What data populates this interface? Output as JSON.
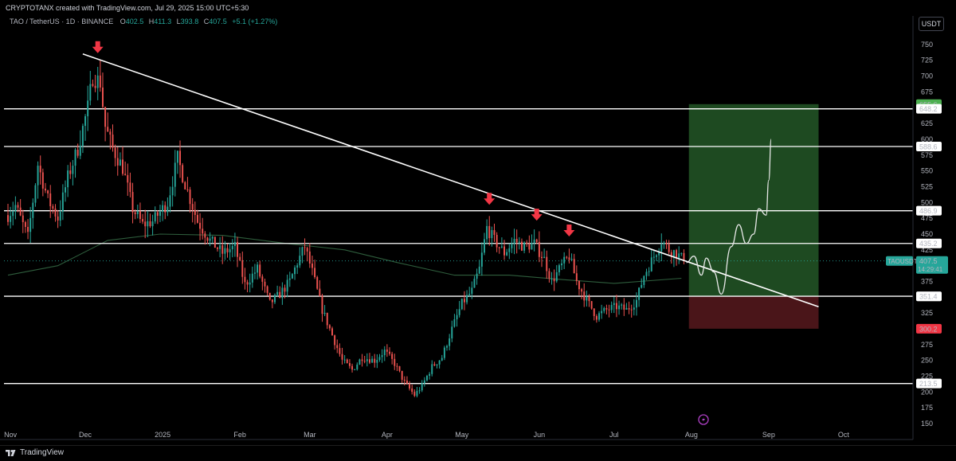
{
  "header": {
    "attribution": "CRYPTOTANX created with TradingView.com, Jul 29, 2025 15:00 UTC+5:30"
  },
  "legend": {
    "symbol": "TAO / TetherUS · 1D · BINANCE",
    "o_label": "O",
    "o_value": "402.5",
    "h_label": "H",
    "h_value": "411.3",
    "l_label": "L",
    "l_value": "393.8",
    "c_label": "C",
    "c_value": "407.5",
    "change": "+5.1 (+1.27%)"
  },
  "currency_button": "USDT",
  "footer": {
    "brand": "TradingView"
  },
  "colors": {
    "up": "#26a69a",
    "down": "#ef5350",
    "ma": "#2e5d3c",
    "level_line": "#ffffff",
    "target_zone": "#1e4a21",
    "stop_zone": "#4a1519",
    "arrow": "#f23645"
  },
  "chart_data": {
    "type": "candlestick",
    "symbol": "TAOUSDT",
    "timeframe": "1D",
    "y_axis": {
      "range": [
        140,
        770
      ],
      "ticks": [
        150,
        175,
        200,
        225,
        250,
        275,
        300,
        325,
        350,
        375,
        400,
        425,
        450,
        475,
        500,
        525,
        550,
        575,
        600,
        625,
        650,
        675,
        700,
        725,
        750
      ]
    },
    "x_axis": {
      "labels": [
        "Nov",
        "Dec",
        "2025",
        "Feb",
        "Mar",
        "Apr",
        "May",
        "Jun",
        "Jul",
        "Aug",
        "Sep",
        "Oct"
      ],
      "start": "2024-10-31",
      "end": "2025-10-10"
    },
    "horizontal_levels": [
      648.2,
      588.6,
      486.9,
      435.2,
      351.6,
      213.5
    ],
    "price_labels": [
      {
        "value": 655.6,
        "text": "655.6",
        "kind": "target"
      },
      {
        "value": 648.2,
        "text": "648.2",
        "kind": "level"
      },
      {
        "value": 588.6,
        "text": "588.6",
        "kind": "level"
      },
      {
        "value": 486.9,
        "text": "486.9",
        "kind": "level"
      },
      {
        "value": 435.2,
        "text": "435.2",
        "kind": "level"
      },
      {
        "value": 351.6,
        "text": "351.6",
        "kind": "entry"
      },
      {
        "value": 351.4,
        "text": "351.4",
        "kind": "level"
      },
      {
        "value": 300.2,
        "text": "300.2",
        "kind": "stop"
      },
      {
        "value": 213.5,
        "text": "213.5",
        "kind": "level"
      }
    ],
    "last_price": {
      "value": 407.5,
      "symbol_label": "TAOUSDT",
      "price_label": "407.5",
      "countdown": "14:29:41"
    },
    "trendline": {
      "start": {
        "date": "2024-11-30",
        "price": 735
      },
      "end": {
        "date": "2025-09-21",
        "price": 335
      }
    },
    "position": {
      "start": "2025-07-31",
      "end": "2025-09-21",
      "entry": 351.6,
      "target": 655.6,
      "stop": 300.2
    },
    "projection": [
      {
        "date": "2025-07-30",
        "price": 405
      },
      {
        "date": "2025-08-02",
        "price": 415
      },
      {
        "date": "2025-08-05",
        "price": 385
      },
      {
        "date": "2025-08-07",
        "price": 412
      },
      {
        "date": "2025-08-10",
        "price": 390
      },
      {
        "date": "2025-08-13",
        "price": 355
      },
      {
        "date": "2025-08-17",
        "price": 430
      },
      {
        "date": "2025-08-20",
        "price": 465
      },
      {
        "date": "2025-08-23",
        "price": 435
      },
      {
        "date": "2025-08-26",
        "price": 450
      },
      {
        "date": "2025-08-28",
        "price": 490
      },
      {
        "date": "2025-08-31",
        "price": 480
      },
      {
        "date": "2025-09-01",
        "price": 535
      },
      {
        "date": "2025-09-02",
        "price": 600
      }
    ],
    "arrows": [
      {
        "date": "2024-12-06",
        "price": 740
      },
      {
        "date": "2025-05-12",
        "price": 500
      },
      {
        "date": "2025-05-31",
        "price": 475
      },
      {
        "date": "2025-06-13",
        "price": 450
      }
    ],
    "price_path": [
      {
        "date": "2024-10-31",
        "price": 480
      },
      {
        "date": "2024-11-03",
        "price": 495
      },
      {
        "date": "2024-11-08",
        "price": 445
      },
      {
        "date": "2024-11-12",
        "price": 560
      },
      {
        "date": "2024-11-16",
        "price": 505
      },
      {
        "date": "2024-11-20",
        "price": 475
      },
      {
        "date": "2024-11-24",
        "price": 540
      },
      {
        "date": "2024-11-28",
        "price": 585
      },
      {
        "date": "2024-12-02",
        "price": 650
      },
      {
        "date": "2024-12-04",
        "price": 700
      },
      {
        "date": "2024-12-07",
        "price": 690
      },
      {
        "date": "2024-12-09",
        "price": 620
      },
      {
        "date": "2024-12-12",
        "price": 585
      },
      {
        "date": "2024-12-16",
        "price": 555
      },
      {
        "date": "2024-12-20",
        "price": 490
      },
      {
        "date": "2024-12-24",
        "price": 465
      },
      {
        "date": "2024-12-28",
        "price": 470
      },
      {
        "date": "2025-01-03",
        "price": 500
      },
      {
        "date": "2025-01-07",
        "price": 570
      },
      {
        "date": "2025-01-10",
        "price": 530
      },
      {
        "date": "2025-01-15",
        "price": 470
      },
      {
        "date": "2025-01-20",
        "price": 440
      },
      {
        "date": "2025-01-25",
        "price": 420
      },
      {
        "date": "2025-01-30",
        "price": 430
      },
      {
        "date": "2025-02-03",
        "price": 370
      },
      {
        "date": "2025-02-08",
        "price": 395
      },
      {
        "date": "2025-02-13",
        "price": 340
      },
      {
        "date": "2025-02-17",
        "price": 355
      },
      {
        "date": "2025-02-21",
        "price": 375
      },
      {
        "date": "2025-02-24",
        "price": 405
      },
      {
        "date": "2025-02-27",
        "price": 430
      },
      {
        "date": "2025-03-02",
        "price": 390
      },
      {
        "date": "2025-03-06",
        "price": 330
      },
      {
        "date": "2025-03-10",
        "price": 290
      },
      {
        "date": "2025-03-14",
        "price": 250
      },
      {
        "date": "2025-03-18",
        "price": 235
      },
      {
        "date": "2025-03-22",
        "price": 255
      },
      {
        "date": "2025-03-27",
        "price": 250
      },
      {
        "date": "2025-03-31",
        "price": 265
      },
      {
        "date": "2025-04-04",
        "price": 245
      },
      {
        "date": "2025-04-08",
        "price": 215
      },
      {
        "date": "2025-04-12",
        "price": 195
      },
      {
        "date": "2025-04-15",
        "price": 210
      },
      {
        "date": "2025-04-19",
        "price": 240
      },
      {
        "date": "2025-04-23",
        "price": 255
      },
      {
        "date": "2025-04-27",
        "price": 300
      },
      {
        "date": "2025-05-01",
        "price": 340
      },
      {
        "date": "2025-05-05",
        "price": 360
      },
      {
        "date": "2025-05-08",
        "price": 395
      },
      {
        "date": "2025-05-11",
        "price": 460
      },
      {
        "date": "2025-05-14",
        "price": 440
      },
      {
        "date": "2025-05-18",
        "price": 420
      },
      {
        "date": "2025-05-22",
        "price": 440
      },
      {
        "date": "2025-05-26",
        "price": 430
      },
      {
        "date": "2025-05-30",
        "price": 435
      },
      {
        "date": "2025-06-03",
        "price": 410
      },
      {
        "date": "2025-06-06",
        "price": 375
      },
      {
        "date": "2025-06-10",
        "price": 400
      },
      {
        "date": "2025-06-13",
        "price": 415
      },
      {
        "date": "2025-06-16",
        "price": 375
      },
      {
        "date": "2025-06-20",
        "price": 345
      },
      {
        "date": "2025-06-24",
        "price": 320
      },
      {
        "date": "2025-06-28",
        "price": 330
      },
      {
        "date": "2025-07-02",
        "price": 335
      },
      {
        "date": "2025-07-06",
        "price": 330
      },
      {
        "date": "2025-07-10",
        "price": 345
      },
      {
        "date": "2025-07-13",
        "price": 385
      },
      {
        "date": "2025-07-17",
        "price": 415
      },
      {
        "date": "2025-07-20",
        "price": 440
      },
      {
        "date": "2025-07-23",
        "price": 425
      },
      {
        "date": "2025-07-26",
        "price": 420
      },
      {
        "date": "2025-07-29",
        "price": 407.5
      }
    ],
    "ma_path": [
      {
        "date": "2024-10-31",
        "price": 385
      },
      {
        "date": "2024-11-20",
        "price": 400
      },
      {
        "date": "2024-12-10",
        "price": 440
      },
      {
        "date": "2024-12-31",
        "price": 450
      },
      {
        "date": "2025-01-25",
        "price": 448
      },
      {
        "date": "2025-02-20",
        "price": 435
      },
      {
        "date": "2025-03-15",
        "price": 425
      },
      {
        "date": "2025-04-05",
        "price": 405
      },
      {
        "date": "2025-04-28",
        "price": 385
      },
      {
        "date": "2025-05-20",
        "price": 385
      },
      {
        "date": "2025-06-10",
        "price": 378
      },
      {
        "date": "2025-07-01",
        "price": 372
      },
      {
        "date": "2025-07-28",
        "price": 380
      }
    ]
  }
}
